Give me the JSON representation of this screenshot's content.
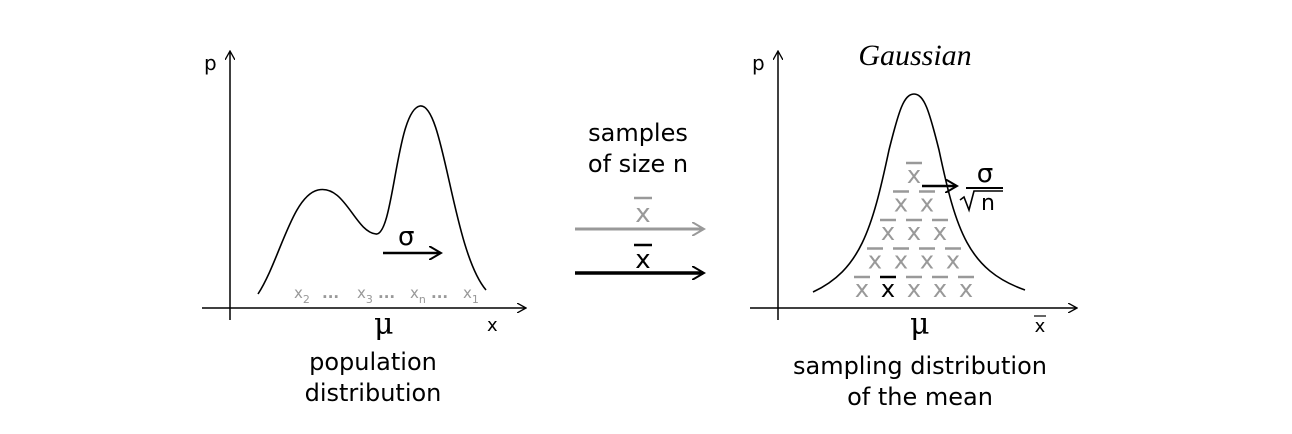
{
  "left_panel": {
    "y_axis_label": "p",
    "x_axis_label": "x",
    "mean_label": "μ",
    "sigma_label": "σ",
    "samples": [
      {
        "base": "x",
        "sub": "2"
      },
      {
        "base": "x",
        "sub": "3"
      },
      {
        "base": "x",
        "sub": "n"
      },
      {
        "base": "x",
        "sub": "1"
      }
    ],
    "ellipsis": "...",
    "caption_line1": "population",
    "caption_line2": "distribution"
  },
  "middle": {
    "line1": "samples",
    "line2": "of size n",
    "gray_arrow_label": "x",
    "black_arrow_label": "x",
    "gray_arrow_color": "#999999",
    "black_arrow_color": "#000000"
  },
  "right_panel": {
    "title": "Gaussian",
    "y_axis_label": "p",
    "x_axis_label": "x",
    "mean_label": "μ",
    "sigma_label": "σ",
    "sigma_denominator": "n",
    "xbar_glyph": "x",
    "xbar_rows": [
      1,
      2,
      3,
      4,
      5
    ],
    "highlighted_xbar": {
      "row": 1,
      "index": 2
    },
    "caption_line1": "sampling distribution",
    "caption_line2": "of the mean"
  },
  "colors": {
    "ink": "#000000",
    "gray": "#999999"
  }
}
